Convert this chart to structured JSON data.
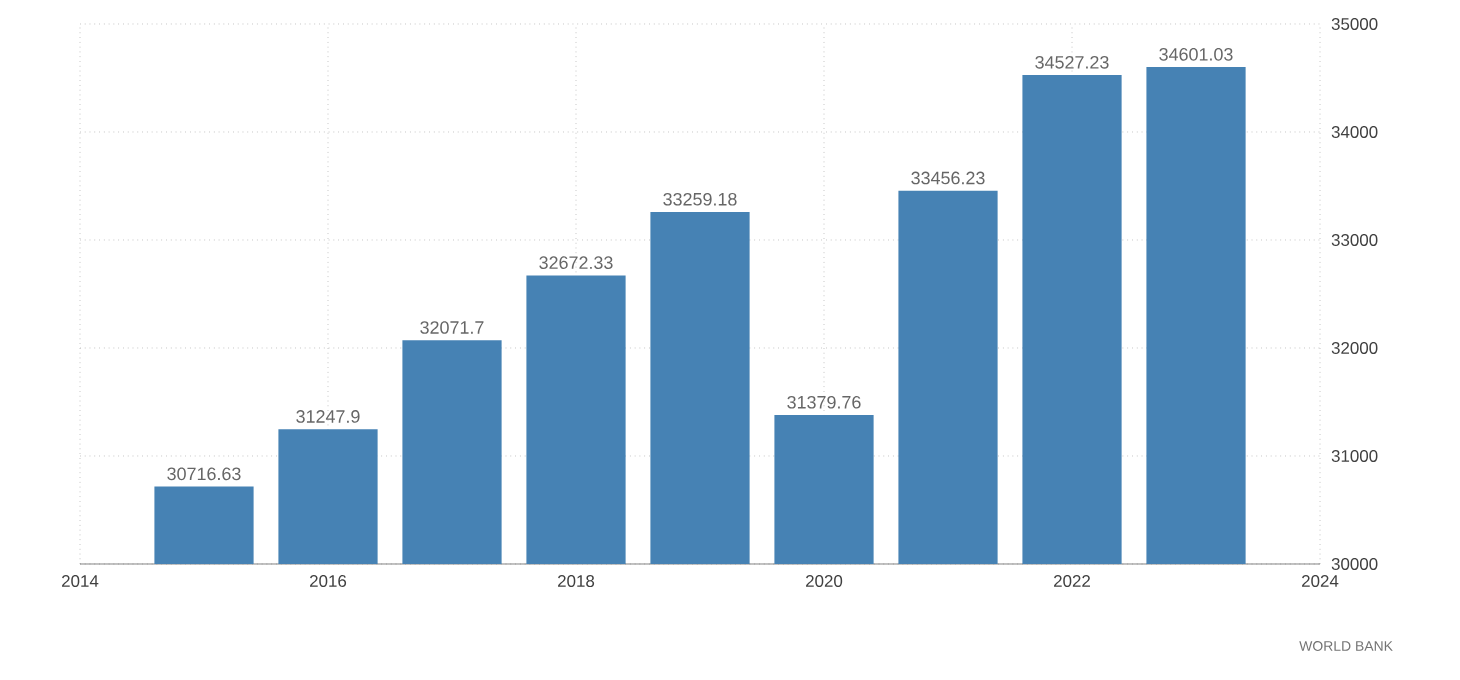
{
  "chart_data": {
    "type": "bar",
    "x": [
      2015,
      2016,
      2017,
      2018,
      2019,
      2020,
      2021,
      2022,
      2023
    ],
    "values": [
      30716.63,
      31247.9,
      32071.7,
      32672.33,
      33259.18,
      31379.76,
      33456.23,
      34527.23,
      34601.03
    ],
    "value_labels": [
      "30716.63",
      "31247.9",
      "32071.7",
      "32672.33",
      "33259.18",
      "31379.76",
      "33456.23",
      "34527.23",
      "34601.03"
    ],
    "color": "#4682b4",
    "xlim": [
      2014,
      2024
    ],
    "xticks": [
      2014,
      2016,
      2018,
      2020,
      2022,
      2024
    ],
    "ylim": [
      30000,
      35000
    ],
    "yticks": [
      30000,
      31000,
      32000,
      33000,
      34000,
      35000
    ],
    "grid": true,
    "annotations": [
      "WORLD BANK"
    ]
  }
}
